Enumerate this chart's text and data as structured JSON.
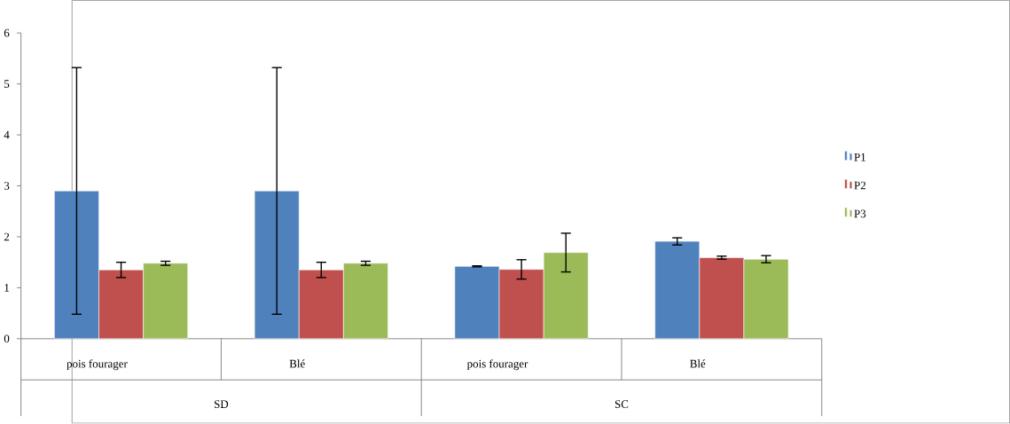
{
  "chart_data": {
    "type": "bar",
    "categories": [
      "pois fourager",
      "Blé",
      "pois fourager",
      "Blé"
    ],
    "annotations": [
      "SD",
      "SC"
    ],
    "series": [
      {
        "name": "P1",
        "color": "#4f81bd",
        "values": [
          2.9,
          2.9,
          1.42,
          1.91
        ],
        "errors": [
          2.42,
          2.42,
          0.01,
          0.07
        ]
      },
      {
        "name": "P2",
        "color": "#c0504d",
        "values": [
          1.35,
          1.35,
          1.36,
          1.59
        ],
        "errors": [
          0.15,
          0.15,
          0.19,
          0.03
        ]
      },
      {
        "name": "P3",
        "color": "#9bbb59",
        "values": [
          1.48,
          1.48,
          1.69,
          1.56
        ],
        "errors": [
          0.04,
          0.04,
          0.38,
          0.07
        ]
      }
    ],
    "ylim": [
      0,
      6
    ],
    "yticks": [
      0,
      1,
      2,
      3,
      4,
      5,
      6
    ],
    "grid": false,
    "legend": "right"
  }
}
